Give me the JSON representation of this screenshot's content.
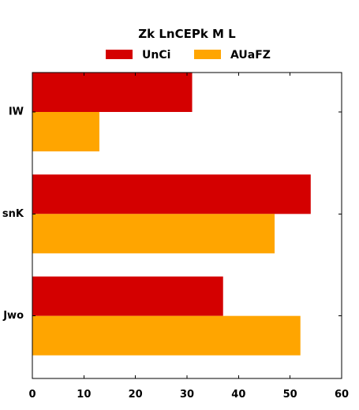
{
  "chart_data": {
    "type": "bar",
    "orientation": "horizontal",
    "title": "Zk LnCEPk M L",
    "categories": [
      "IW",
      "snK",
      "Jwo"
    ],
    "series": [
      {
        "name": "UnCi",
        "values": [
          31,
          54,
          37
        ],
        "color": "#d40000"
      },
      {
        "name": "AUaFZ",
        "values": [
          13,
          47,
          52
        ],
        "color": "#ffa500"
      }
    ],
    "xlim": [
      0,
      60
    ],
    "xticks": [
      0,
      10,
      20,
      30,
      40,
      50,
      60
    ],
    "xlabel": "",
    "ylabel": "",
    "legend_position": "top-center",
    "grid": false
  }
}
